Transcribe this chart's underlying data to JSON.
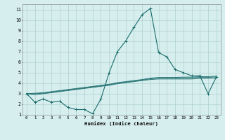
{
  "xlabel": "Humidex (Indice chaleur)",
  "xlim": [
    -0.5,
    23.5
  ],
  "ylim": [
    1,
    11.5
  ],
  "yticks": [
    1,
    2,
    3,
    4,
    5,
    6,
    7,
    8,
    9,
    10,
    11
  ],
  "xticks": [
    0,
    1,
    2,
    3,
    4,
    5,
    6,
    7,
    8,
    9,
    10,
    11,
    12,
    13,
    14,
    15,
    16,
    17,
    18,
    19,
    20,
    21,
    22,
    23
  ],
  "background_color": "#d6efee",
  "grid_color": "#aed0cc",
  "line_color": "#1a6b6b",
  "line1_x": [
    0,
    1,
    2,
    3,
    4,
    5,
    6,
    7,
    8,
    9,
    10,
    11,
    12,
    13,
    14,
    15,
    16,
    17,
    18,
    19,
    20,
    21,
    22,
    23
  ],
  "line1_y": [
    3.0,
    2.2,
    2.5,
    2.2,
    2.3,
    1.7,
    1.5,
    1.5,
    1.1,
    2.5,
    5.0,
    7.0,
    8.0,
    9.3,
    10.5,
    11.1,
    6.9,
    6.5,
    5.3,
    5.0,
    4.7,
    4.7,
    3.0,
    4.6
  ],
  "smooth_lines": [
    [
      3.0,
      2.9,
      3.0,
      3.1,
      3.2,
      3.3,
      3.4,
      3.5,
      3.6,
      3.7,
      3.8,
      3.95,
      4.05,
      4.15,
      4.25,
      4.35,
      4.4,
      4.4,
      4.4,
      4.4,
      4.4,
      4.45,
      4.45,
      4.5
    ],
    [
      3.0,
      3.0,
      3.05,
      3.15,
      3.25,
      3.35,
      3.45,
      3.55,
      3.65,
      3.75,
      3.85,
      4.0,
      4.1,
      4.2,
      4.3,
      4.42,
      4.48,
      4.48,
      4.48,
      4.5,
      4.5,
      4.55,
      4.55,
      4.6
    ],
    [
      3.0,
      3.05,
      3.1,
      3.2,
      3.3,
      3.4,
      3.5,
      3.6,
      3.7,
      3.8,
      3.9,
      4.05,
      4.15,
      4.25,
      4.35,
      4.48,
      4.55,
      4.55,
      4.55,
      4.58,
      4.58,
      4.62,
      4.62,
      4.68
    ]
  ]
}
